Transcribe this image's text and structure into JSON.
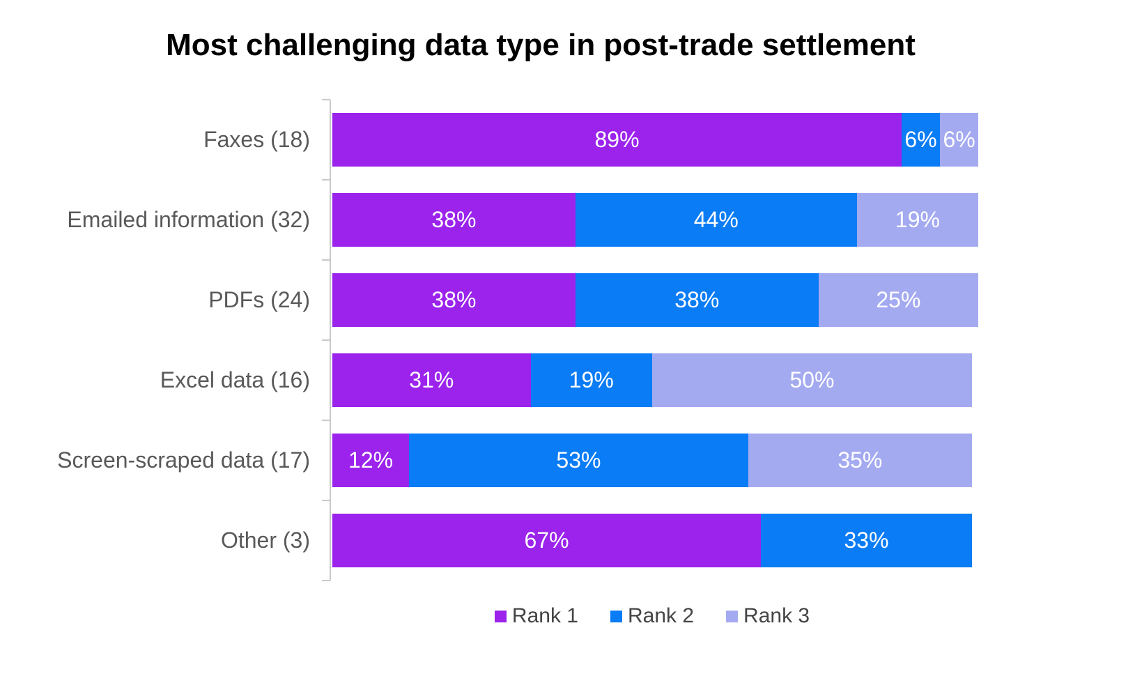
{
  "title": "Most challenging data type in post-trade settlement",
  "chart_data": {
    "type": "bar",
    "orientation": "horizontal",
    "stacked": true,
    "title": "Most challenging data type in post-trade settlement",
    "categories": [
      "Faxes (18)",
      "Emailed information (32)",
      "PDFs (24)",
      "Excel data (16)",
      "Screen-scraped data (17)",
      "Other (3)"
    ],
    "series": [
      {
        "name": "Rank 1",
        "color": "#9B23EC",
        "values": [
          89,
          38,
          38,
          31,
          12,
          67
        ]
      },
      {
        "name": "Rank 2",
        "color": "#0A7CF5",
        "values": [
          6,
          44,
          38,
          19,
          53,
          33
        ]
      },
      {
        "name": "Rank 3",
        "color": "#A4AAF0",
        "values": [
          6,
          19,
          25,
          50,
          35,
          0
        ]
      }
    ],
    "data_label_suffix": "%",
    "xlim": [
      0,
      100
    ],
    "legend_entries": [
      "Rank 1",
      "Rank 2",
      "Rank 3"
    ],
    "legend_position": "bottom",
    "grid": false,
    "colors": {
      "category_label": "#595959",
      "data_label": "#FFFFFF",
      "legend_label": "#444444",
      "axis_line": "#C9C9C9",
      "title": "#000000",
      "background": "#FFFFFF"
    }
  }
}
